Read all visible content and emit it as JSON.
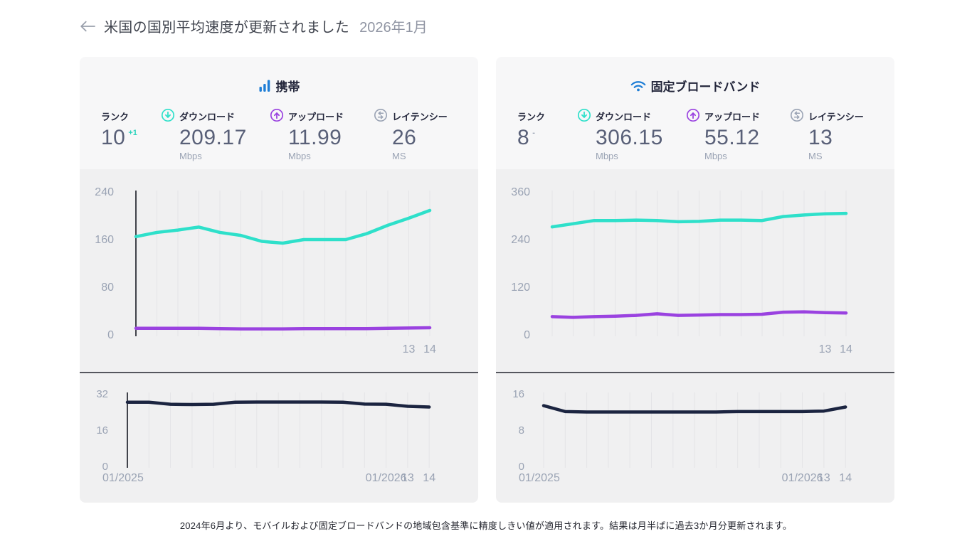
{
  "header": {
    "title": "米国の国別平均速度が更新されました",
    "period": "2026年1月",
    "back_icon": "left-arrow"
  },
  "labels": {
    "rank": "ランク",
    "download": "ダウンロード",
    "upload": "アップロード",
    "latency": "レイテンシー",
    "mbps": "Mbps",
    "ms": "MS"
  },
  "colors": {
    "download": "#2EE0CA",
    "upload": "#9A42E0",
    "latency_line": "#1B2440",
    "brand_blue": "#1F7ED6",
    "rank_up": "#2BD3BC",
    "rank_neutral": "#9AA3B4",
    "axis_label": "#9AA3B4",
    "card_top_bg": "#F7F7F8",
    "card_chart_bg": "#F0F0F1"
  },
  "cards": [
    {
      "id": "mobile",
      "title": "携帯",
      "icon": "mobile-bars-icon",
      "stats": {
        "rank": "10",
        "rank_change": "+1",
        "rank_change_color": "#2BD3BC",
        "download": "209.17",
        "upload": "11.99",
        "latency": "26"
      }
    },
    {
      "id": "fixed",
      "title": "固定ブロードバンド",
      "icon": "wifi-icon",
      "stats": {
        "rank": "8",
        "rank_change": "-",
        "rank_change_color": "#9AA3B4",
        "download": "306.15",
        "upload": "55.12",
        "latency": "13"
      }
    }
  ],
  "chart_data": [
    {
      "id": "mobile-speed",
      "kind": "speed",
      "type": "line",
      "title": "携帯 ダウンロード/アップロード (Mbps)",
      "ylim": [
        0,
        240
      ],
      "yticks": [
        240,
        160,
        80,
        0
      ],
      "xticks": [
        {
          "index": 13,
          "label": "13"
        },
        {
          "index": 14,
          "label": "14"
        }
      ],
      "left_spine": true,
      "grid": true,
      "series": [
        {
          "name": "ダウンロード",
          "color": "#2EE0CA",
          "values": [
            165,
            172,
            176,
            181,
            172,
            167,
            157,
            154,
            160,
            160,
            160,
            170,
            184,
            196,
            209
          ]
        },
        {
          "name": "アップロード",
          "color": "#9A42E0",
          "values": [
            11,
            11,
            11,
            11,
            10.5,
            10,
            10,
            10,
            10.5,
            10.5,
            10.5,
            10.5,
            11,
            11.5,
            12
          ]
        }
      ]
    },
    {
      "id": "mobile-latency",
      "kind": "latency",
      "type": "line",
      "title": "携帯 レイテンシー (MS)",
      "ylim": [
        0,
        32
      ],
      "yticks": [
        32,
        16,
        0
      ],
      "xticks": [
        {
          "index": 0,
          "label": "01/2025",
          "edge": "start"
        },
        {
          "index": 12,
          "label": "01/2026"
        },
        {
          "index": 13,
          "label": "13"
        },
        {
          "index": 14,
          "label": "14"
        }
      ],
      "left_spine": true,
      "grid": true,
      "series": [
        {
          "name": "レイテンシー",
          "color": "#1B2440",
          "values": [
            28.3,
            28.3,
            27.4,
            27.3,
            27.4,
            28.3,
            28.4,
            28.4,
            28.4,
            28.4,
            28.3,
            27.5,
            27.4,
            26.5,
            26.2
          ]
        }
      ]
    },
    {
      "id": "fixed-speed",
      "kind": "speed",
      "type": "line",
      "title": "固定ブロードバンド ダウンロード/アップロード (Mbps)",
      "ylim": [
        0,
        360
      ],
      "yticks": [
        360,
        240,
        120,
        0
      ],
      "xticks": [
        {
          "index": 13,
          "label": "13"
        },
        {
          "index": 14,
          "label": "14"
        }
      ],
      "left_spine": false,
      "grid": true,
      "series": [
        {
          "name": "ダウンロード",
          "color": "#2EE0CA",
          "values": [
            272,
            280,
            288,
            288,
            289,
            288,
            285,
            286,
            289,
            289,
            288,
            298,
            302,
            305,
            306
          ]
        },
        {
          "name": "アップロード",
          "color": "#9A42E0",
          "values": [
            46,
            44,
            46,
            47,
            49,
            53,
            49,
            50,
            51,
            51,
            52,
            57,
            58,
            56,
            55
          ]
        }
      ]
    },
    {
      "id": "fixed-latency",
      "kind": "latency",
      "type": "line",
      "title": "固定ブロードバンド レイテンシー (MS)",
      "ylim": [
        0,
        16
      ],
      "yticks": [
        16,
        8,
        0
      ],
      "xticks": [
        {
          "index": 0,
          "label": "01/2025",
          "edge": "start"
        },
        {
          "index": 12,
          "label": "01/2026"
        },
        {
          "index": 13,
          "label": "13"
        },
        {
          "index": 14,
          "label": "14"
        }
      ],
      "left_spine": false,
      "grid": true,
      "series": [
        {
          "name": "レイテンシー",
          "color": "#1B2440",
          "values": [
            13.4,
            12.1,
            12,
            12,
            12,
            12,
            12,
            12,
            12,
            12.1,
            12.1,
            12.1,
            12.1,
            12.2,
            13.1
          ]
        }
      ]
    }
  ],
  "footer": {
    "note": "2024年6月より、モバイルおよび固定ブロードバンドの地域包含基準に精度しきい値が適用されます。結果は月半ばに過去3か月分更新されます。"
  }
}
